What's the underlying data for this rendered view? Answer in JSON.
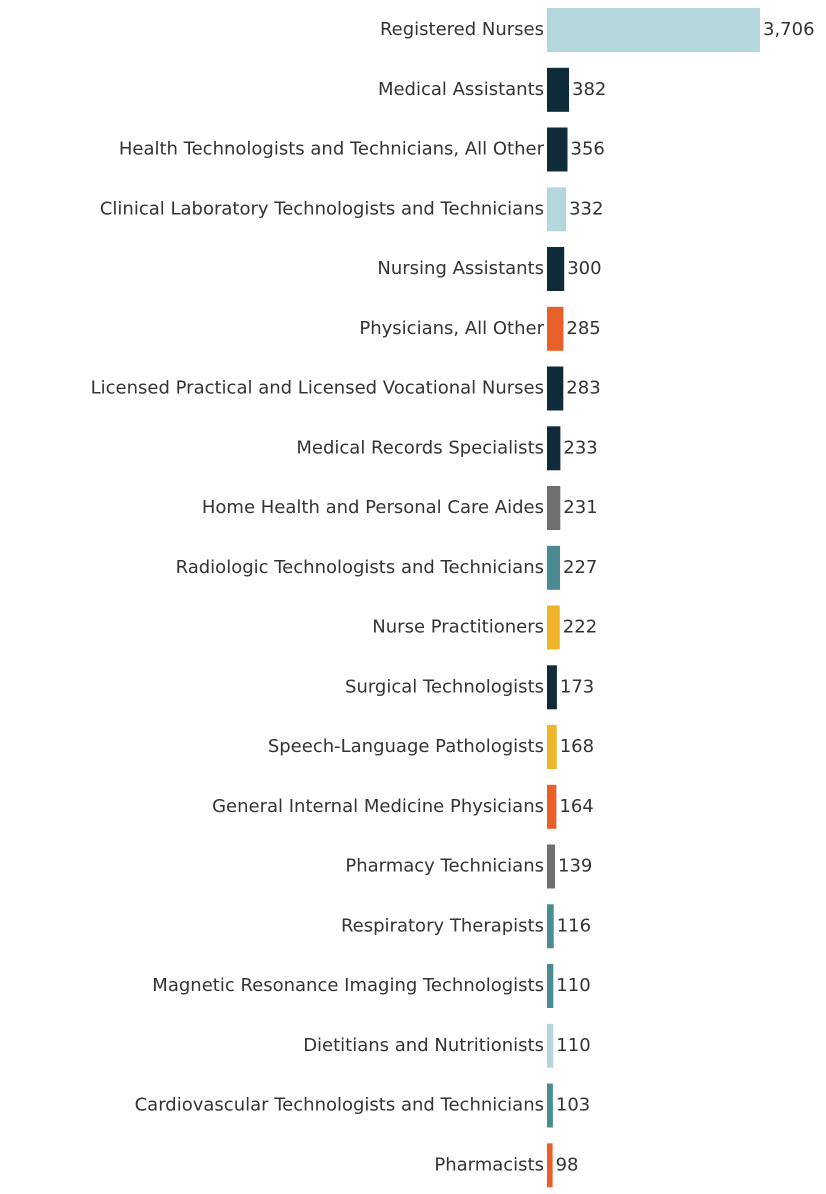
{
  "chart_data": {
    "type": "bar",
    "orientation": "horizontal",
    "categories": [
      "Registered Nurses",
      "Medical Assistants",
      "Health Technologists and Technicians, All Other",
      "Clinical Laboratory Technologists and Technicians",
      "Nursing Assistants",
      "Physicians, All Other",
      "Licensed Practical and Licensed Vocational Nurses",
      "Medical Records Specialists",
      "Home Health and Personal Care Aides",
      "Radiologic Technologists and Technicians",
      "Nurse Practitioners",
      "Surgical Technologists",
      "Speech-Language Pathologists",
      "General Internal Medicine Physicians",
      "Pharmacy Technicians",
      "Respiratory Therapists",
      "Magnetic Resonance Imaging Technologists",
      "Dietitians and Nutritionists",
      "Cardiovascular Technologists and Technicians",
      "Pharmacists"
    ],
    "values": [
      3706,
      382,
      356,
      332,
      300,
      285,
      283,
      233,
      231,
      227,
      222,
      173,
      168,
      164,
      139,
      116,
      110,
      110,
      103,
      98
    ],
    "value_labels": [
      "3,706",
      "382",
      "356",
      "332",
      "300",
      "285",
      "283",
      "233",
      "231",
      "227",
      "222",
      "173",
      "168",
      "164",
      "139",
      "116",
      "110",
      "110",
      "103",
      "98"
    ],
    "colors": [
      "#b3d7dc",
      "#0f2b3a",
      "#0f2b3a",
      "#b3d7dc",
      "#0f2b3a",
      "#e95f2a",
      "#0f2b3a",
      "#0f2b3a",
      "#707070",
      "#4a8a93",
      "#f0b428",
      "#0f2b3a",
      "#f0b428",
      "#e95f2a",
      "#707070",
      "#4a8a93",
      "#4a8a93",
      "#b3d7dc",
      "#4a8a93",
      "#e95f2a"
    ],
    "xlim": [
      0,
      3706
    ],
    "title": "",
    "xlabel": "",
    "ylabel": "",
    "grid": false,
    "legend": "none"
  }
}
